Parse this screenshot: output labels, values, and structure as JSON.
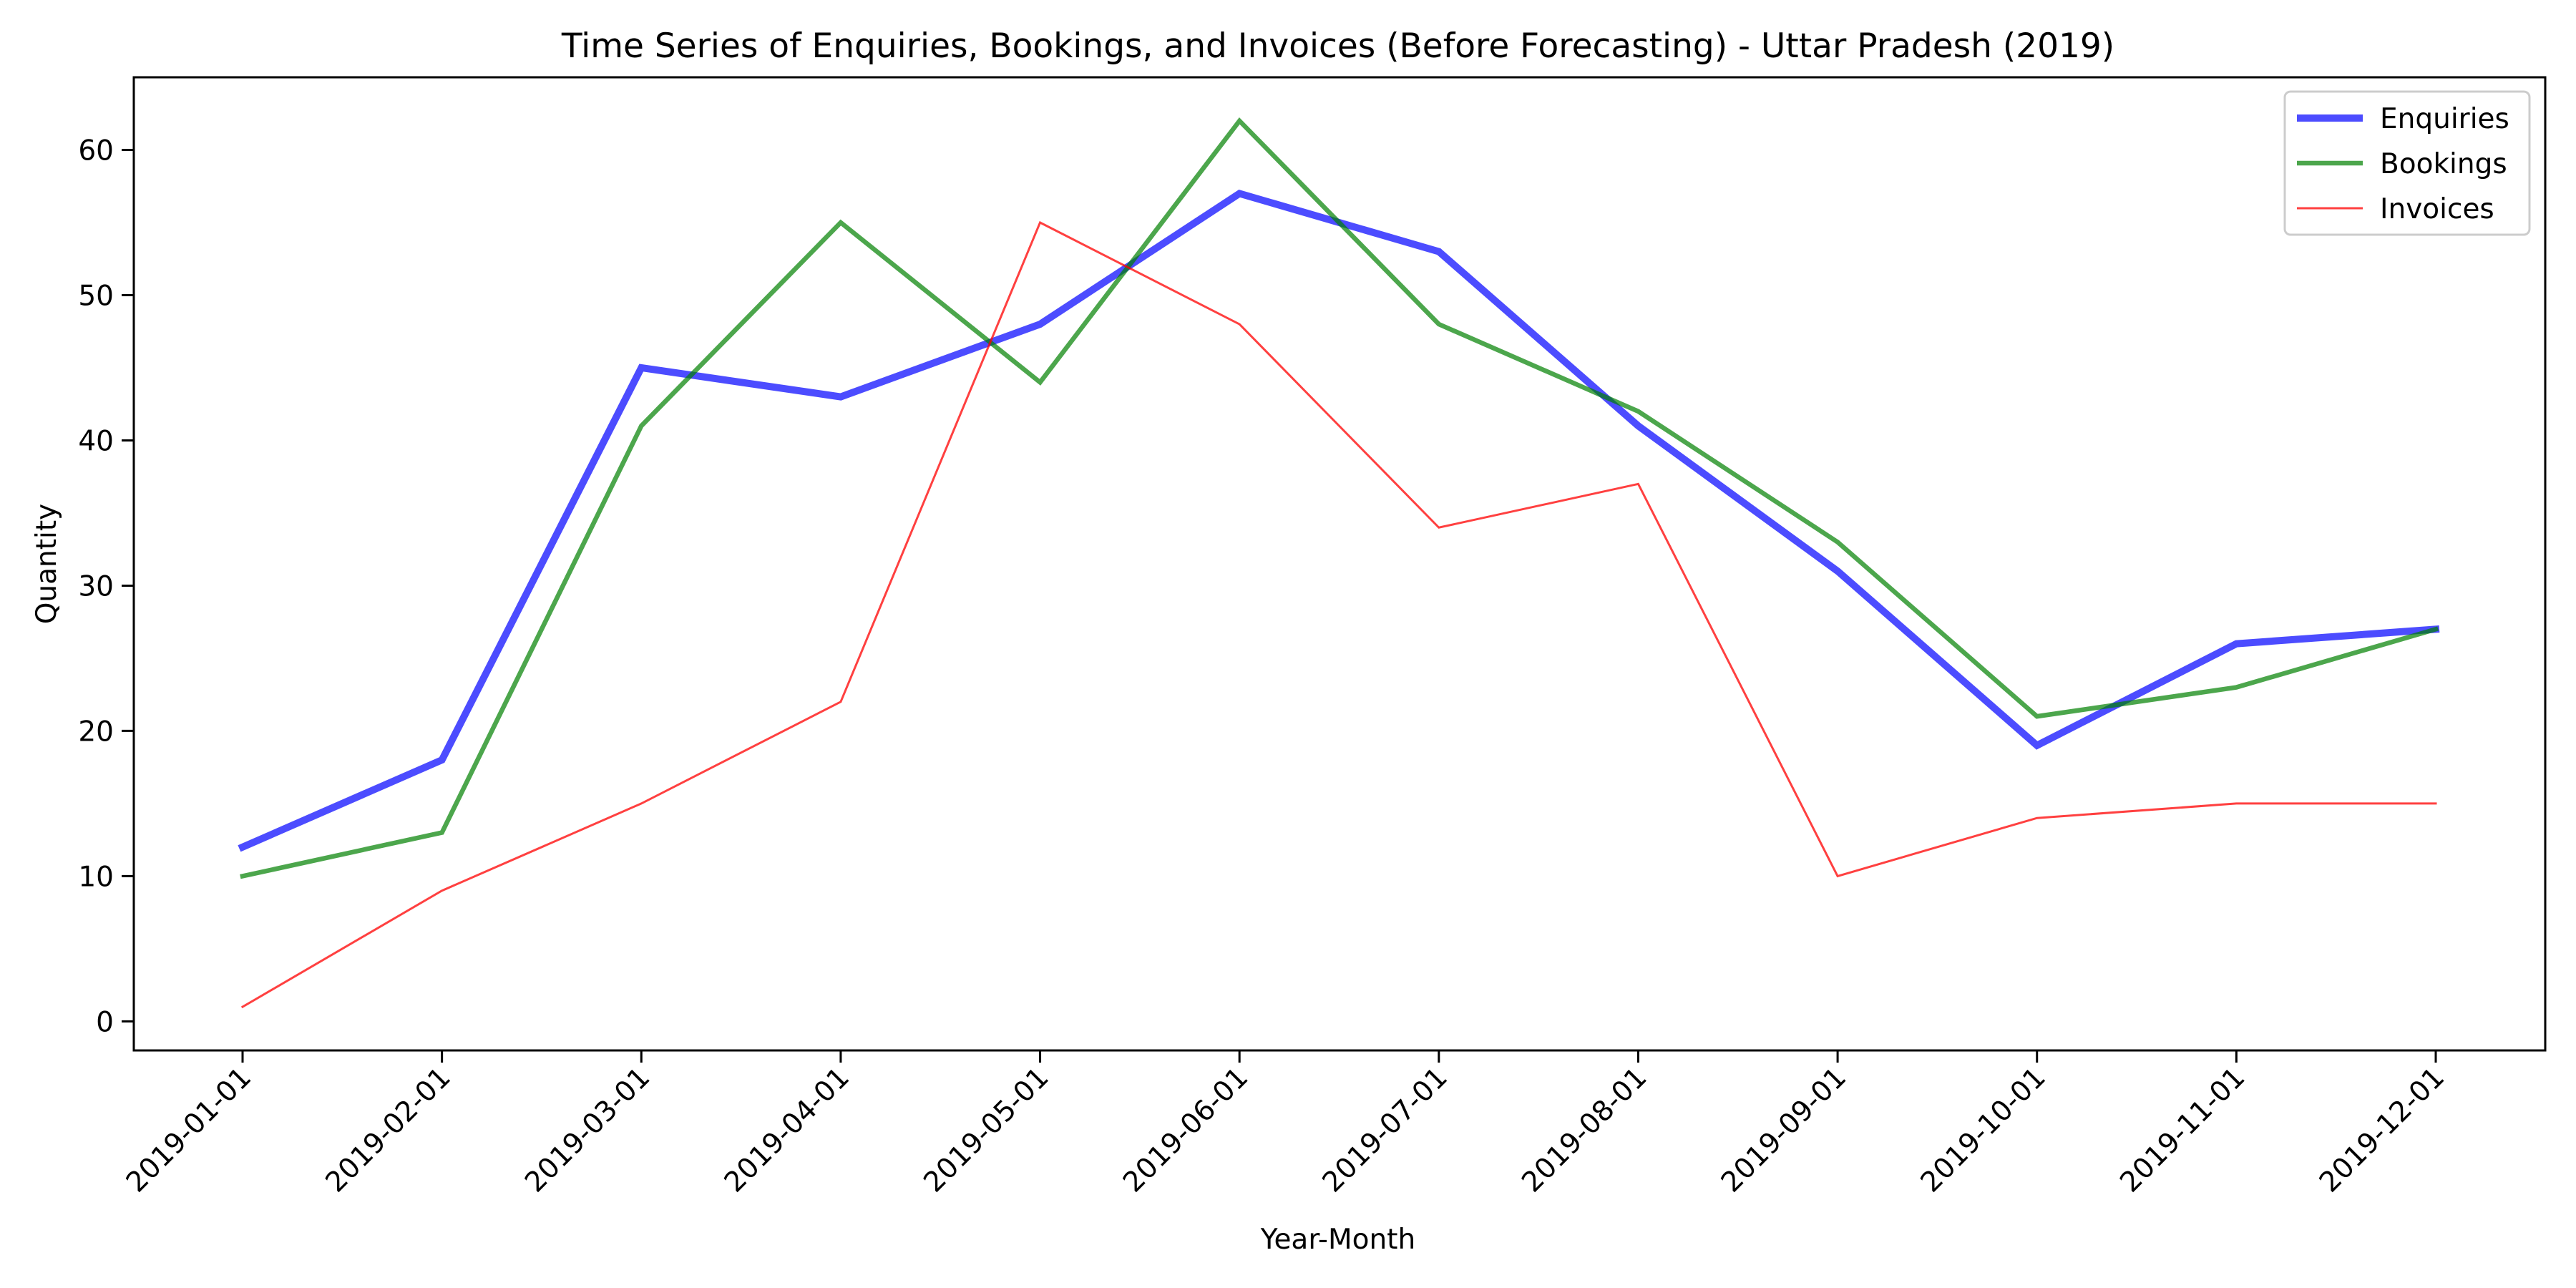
{
  "chart_data": {
    "type": "line",
    "title": "Time Series of Enquiries, Bookings, and Invoices (Before Forecasting) - Uttar Pradesh (2019)",
    "xlabel": "Year-Month",
    "ylabel": "Quantity",
    "x": [
      "2019-01-01",
      "2019-02-01",
      "2019-03-01",
      "2019-04-01",
      "2019-05-01",
      "2019-06-01",
      "2019-07-01",
      "2019-08-01",
      "2019-09-01",
      "2019-10-01",
      "2019-11-01",
      "2019-12-01"
    ],
    "ylim": [
      -2,
      65
    ],
    "yticks": [
      0,
      10,
      20,
      30,
      40,
      50,
      60
    ],
    "grid": false,
    "legend_position": "top-right",
    "series": [
      {
        "name": "Enquiries",
        "color": "#0000ff",
        "values": [
          12,
          18,
          45,
          43,
          48,
          57,
          53,
          41,
          31,
          19,
          26,
          27
        ]
      },
      {
        "name": "Bookings",
        "color": "#008000",
        "values": [
          10,
          13,
          41,
          55,
          44,
          62,
          48,
          42,
          33,
          21,
          23,
          27
        ]
      },
      {
        "name": "Invoices",
        "color": "#ff0000",
        "values": [
          1,
          9,
          15,
          22,
          55,
          48,
          34,
          37,
          10,
          14,
          15,
          15
        ]
      }
    ]
  }
}
